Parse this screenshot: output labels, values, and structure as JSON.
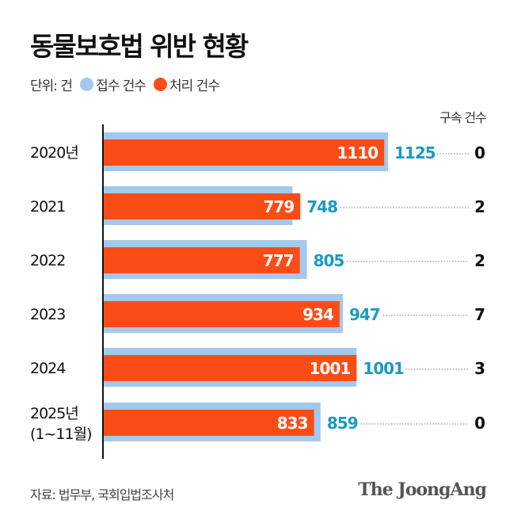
{
  "title": "동물보호법 위반 현황",
  "legend": {
    "unit": "단위: 건",
    "items": [
      {
        "label": "접수 건수",
        "color": "#a3c9ec"
      },
      {
        "label": "처리 건수",
        "color": "#fc4c16"
      }
    ]
  },
  "source": "자료: 법무부, 국회입법조사처",
  "logo": "The JoongAng",
  "chart_data": {
    "type": "bar",
    "orientation": "horizontal",
    "categories": [
      "2020년",
      "2021",
      "2022",
      "2023",
      "2024",
      "2025년 (1~11월)"
    ],
    "series": [
      {
        "name": "접수 건수",
        "color": "#a3c9ec",
        "label_color": "#1a9bc0",
        "values": [
          1125,
          748,
          805,
          947,
          1001,
          859
        ]
      },
      {
        "name": "처리 건수",
        "color": "#fc4c16",
        "label_color": "#ffffff",
        "values": [
          1110,
          779,
          777,
          934,
          1001,
          833
        ]
      }
    ],
    "extra_column": {
      "header": "구속 건수",
      "values": [
        0,
        2,
        2,
        7,
        3,
        0
      ]
    },
    "xlim": [
      0,
      1125
    ],
    "grid": false
  }
}
